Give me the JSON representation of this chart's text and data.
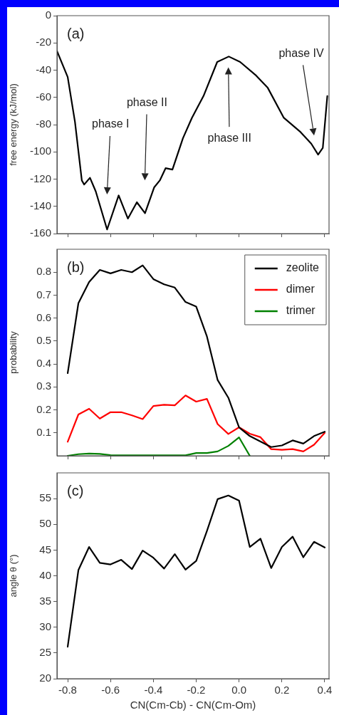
{
  "chart_data": [
    {
      "type": "line",
      "ylabel": "free energy (kJ/mol)",
      "annotations": [
        "(a)",
        "phase I",
        "phase II",
        "phase III",
        "phase IV"
      ],
      "x": [
        -0.85,
        -0.8,
        -0.766,
        -0.734,
        -0.723,
        -0.696,
        -0.669,
        -0.616,
        -0.562,
        -0.519,
        -0.477,
        -0.439,
        -0.396,
        -0.37,
        -0.343,
        -0.311,
        -0.262,
        -0.22,
        -0.166,
        -0.102,
        -0.048,
        0.005,
        0.08,
        0.134,
        0.209,
        0.284,
        0.337,
        0.369,
        0.391,
        0.412
      ],
      "series": [
        {
          "color": "#000000",
          "values": [
            -26,
            -45,
            -78,
            -121,
            -124,
            -119,
            -129,
            -157,
            -132,
            -149,
            -137,
            -145,
            -126,
            -121,
            -112,
            -113,
            -90,
            -75,
            -59,
            -34,
            -30,
            -34,
            -44,
            -53,
            -75,
            -85,
            -94,
            -102,
            -97,
            -59
          ]
        }
      ],
      "xlim": [
        -0.85,
        0.42
      ],
      "xticks": [
        -0.8,
        -0.6,
        -0.4,
        -0.2,
        0,
        0.2,
        0.4
      ],
      "ylim": [
        -160,
        0
      ],
      "yticks": [
        -160,
        -140,
        -120,
        -100,
        -80,
        -60,
        -40,
        -20,
        0
      ],
      "tick_labels": "y",
      "grid": false,
      "marker": "none",
      "legend": false
    },
    {
      "type": "line",
      "ylabel": "probability",
      "annotations": [
        "(b)"
      ],
      "x": [
        -0.8,
        -0.75,
        -0.7,
        -0.65,
        -0.6,
        -0.55,
        -0.5,
        -0.45,
        -0.4,
        -0.35,
        -0.3,
        -0.25,
        -0.2,
        -0.15,
        -0.1,
        -0.05,
        0,
        0.05,
        0.1,
        0.15,
        0.2,
        0.25,
        0.3,
        0.35,
        0.4
      ],
      "series": [
        {
          "name": "zeolite",
          "color": "#000000",
          "values": [
            0.36,
            0.665,
            0.757,
            0.81,
            0.795,
            0.81,
            0.8,
            0.83,
            0.77,
            0.747,
            0.733,
            0.67,
            0.65,
            0.52,
            0.33,
            0.253,
            0.124,
            0.086,
            0.062,
            0.038,
            0.045,
            0.067,
            0.053,
            0.086,
            0.105
          ]
        },
        {
          "name": "dimer",
          "color": "#ff0000",
          "values": [
            0.061,
            0.18,
            0.205,
            0.162,
            0.19,
            0.19,
            0.176,
            0.16,
            0.217,
            0.222,
            0.22,
            0.263,
            0.236,
            0.248,
            0.138,
            0.095,
            0.124,
            0.096,
            0.081,
            0.029,
            0.026,
            0.029,
            0.019,
            0.048,
            0.1
          ]
        },
        {
          "name": "trimer",
          "color": "#008000",
          "values": [
            0,
            0.007,
            0.01,
            0.008,
            0.003,
            0.002,
            0.002,
            0.002,
            0.002,
            0.002,
            0.002,
            0.002,
            0.012,
            0.012,
            0.019,
            0.043,
            0.08,
            0,
            null,
            null,
            null,
            null,
            null,
            null,
            null
          ]
        }
      ],
      "xlim": [
        -0.85,
        0.42
      ],
      "xticks": [
        -0.8,
        -0.6,
        -0.4,
        -0.2,
        0,
        0.2,
        0.4
      ],
      "ylim": [
        0,
        0.9
      ],
      "yticks": [
        0.1,
        0.2,
        0.3,
        0.4,
        0.5,
        0.6,
        0.7,
        0.8
      ],
      "tick_labels": "y",
      "grid": false,
      "marker": "none",
      "legend": "top right"
    },
    {
      "type": "line",
      "ylabel": "angle θ (°)",
      "xlabel": "CN(Cm-Cb) - CN(Cm-Om)",
      "annotations": [
        "(c)"
      ],
      "x": [
        -0.8,
        -0.75,
        -0.7,
        -0.65,
        -0.6,
        -0.55,
        -0.5,
        -0.45,
        -0.4,
        -0.35,
        -0.3,
        -0.25,
        -0.2,
        -0.15,
        -0.1,
        -0.05,
        0,
        0.05,
        0.1,
        0.15,
        0.2,
        0.25,
        0.3,
        0.35,
        0.4
      ],
      "series": [
        {
          "color": "#000000",
          "values": [
            26.2,
            41.1,
            45.6,
            42.5,
            42.2,
            43.1,
            41.3,
            44.9,
            43.5,
            41.4,
            44.2,
            41.2,
            42.9,
            48.7,
            54.9,
            55.6,
            54.6,
            45.6,
            47.2,
            41.5,
            45.6,
            47.6,
            43.6,
            46.6,
            45.5
          ]
        }
      ],
      "xlim": [
        -0.85,
        0.42
      ],
      "xticks": [
        -0.8,
        -0.6,
        -0.4,
        -0.2,
        {
          "value": 0,
          "label": "0.0"
        },
        0.2,
        0.4
      ],
      "ylim": [
        20,
        60
      ],
      "yticks": [
        20,
        25,
        30,
        35,
        40,
        45,
        50,
        55
      ],
      "grid": false,
      "marker": "none",
      "legend": false
    }
  ]
}
